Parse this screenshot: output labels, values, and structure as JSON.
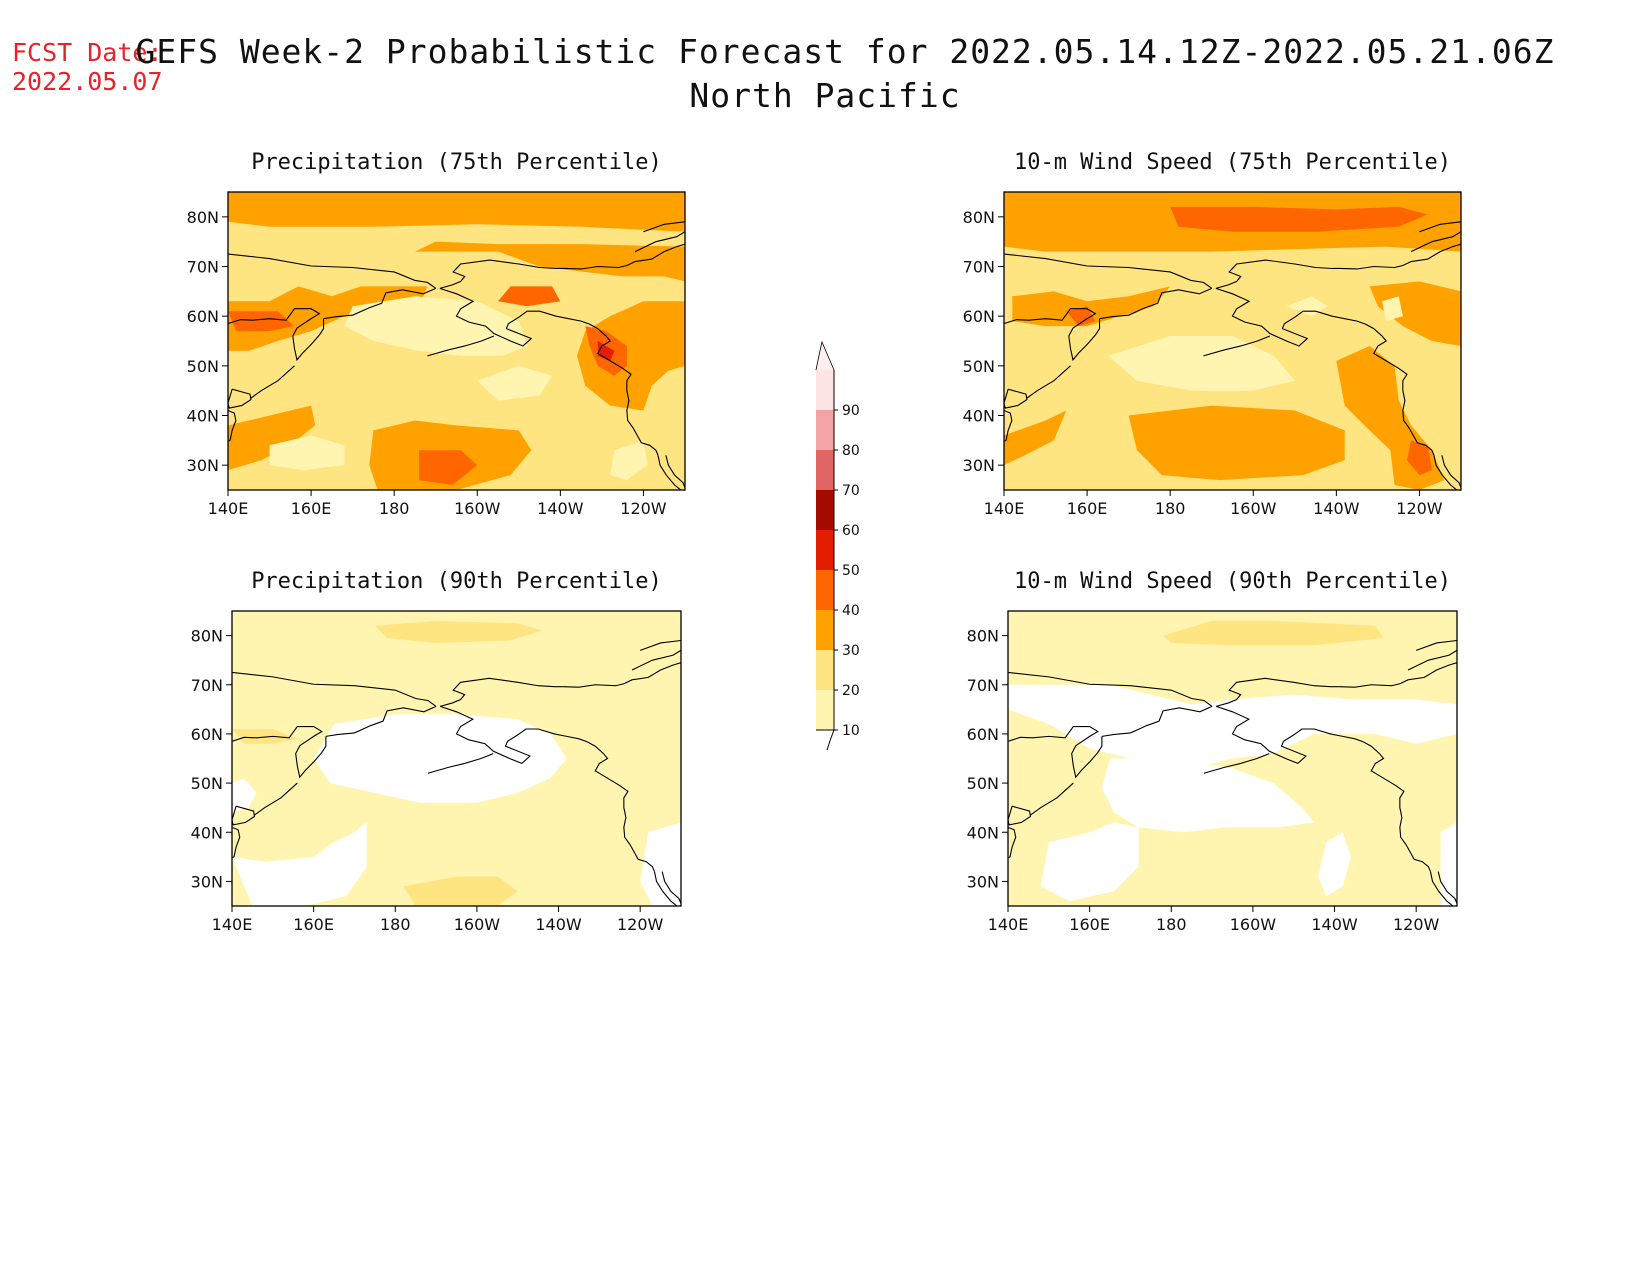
{
  "header": {
    "fcst_label": "FCST Date:",
    "fcst_date": "2022.05.07",
    "title_line1": "GEFS Week-2 Probabilistic Forecast for 2022.05.14.12Z-2022.05.21.06Z",
    "title_line2": "North Pacific"
  },
  "axes": {
    "lon_ticks": [
      "140E",
      "160E",
      "180",
      "160W",
      "140W",
      "120W"
    ],
    "lat_ticks": [
      "80N",
      "70N",
      "60N",
      "50N",
      "40N",
      "30N"
    ]
  },
  "colors": {
    "c10": "#fff5b0",
    "c20": "#ffe482",
    "c30": "#ffa200",
    "c40": "#ff6600",
    "c50": "#e21d00",
    "c60": "#a50a00",
    "c70": "#e06565",
    "c80": "#f3a5a5",
    "c90": "#ffe4e6",
    "coast": "#000000"
  },
  "colorbar": {
    "levels": [
      "10",
      "20",
      "30",
      "40",
      "50",
      "60",
      "70",
      "80",
      "90"
    ]
  },
  "panels": [
    {
      "id": "p1",
      "title": "Precipitation (75th Percentile)",
      "field": "precip75"
    },
    {
      "id": "p2",
      "title": "10-m Wind Speed (75th Percentile)",
      "field": "wind75"
    },
    {
      "id": "p3",
      "title": "Precipitation (90th Percentile)",
      "field": "precip90"
    },
    {
      "id": "p4",
      "title": "10-m Wind Speed (90th Percentile)",
      "field": "wind90"
    }
  ]
}
